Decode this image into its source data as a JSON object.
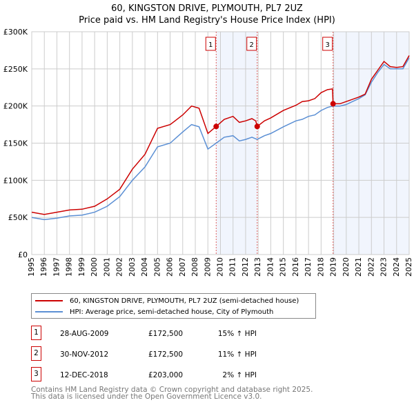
{
  "chart_data": {
    "type": "line",
    "title": "60, KINGSTON DRIVE, PLYMOUTH, PL7 2UZ",
    "subtitle": "Price paid vs. HM Land Registry's House Price Index (HPI)",
    "xlim": [
      1995,
      2025
    ],
    "ylim": [
      0,
      300000
    ],
    "x_ticks": [
      "1995",
      "1996",
      "1997",
      "1998",
      "1999",
      "2000",
      "2001",
      "2002",
      "2003",
      "2004",
      "2005",
      "2006",
      "2007",
      "2008",
      "2009",
      "2010",
      "2011",
      "2012",
      "2013",
      "2014",
      "2015",
      "2016",
      "2017",
      "2018",
      "2019",
      "2020",
      "2021",
      "2022",
      "2023",
      "2024",
      "2025"
    ],
    "y_ticks": [
      {
        "v": 0,
        "label": "£0"
      },
      {
        "v": 50000,
        "label": "£50K"
      },
      {
        "v": 100000,
        "label": "£100K"
      },
      {
        "v": 150000,
        "label": "£150K"
      },
      {
        "v": 200000,
        "label": "£200K"
      },
      {
        "v": 250000,
        "label": "£250K"
      },
      {
        "v": 300000,
        "label": "£300K"
      }
    ],
    "grid": true,
    "series": [
      {
        "name": "60, KINGSTON DRIVE, PLYMOUTH, PL7 2UZ (semi-detached house)",
        "color": "#cc0000",
        "x": [
          1995,
          1996,
          1997,
          1998,
          1999,
          2000,
          2001,
          2002,
          2003,
          2004,
          2005,
          2006,
          2007,
          2007.7,
          2008.3,
          2009,
          2009.66,
          2010.3,
          2011,
          2011.5,
          2012,
          2012.5,
          2012.8,
          2012.92,
          2013.5,
          2014,
          2015,
          2016,
          2016.5,
          2017,
          2017.5,
          2018,
          2018.5,
          2018.9,
          2018.95,
          2019.5,
          2020,
          2021,
          2021.5,
          2022,
          2022.5,
          2023,
          2023.5,
          2024,
          2024.5,
          2025
        ],
        "y": [
          57000,
          54000,
          57000,
          60000,
          61000,
          65000,
          75000,
          88000,
          115000,
          135000,
          170000,
          175000,
          188000,
          200000,
          197000,
          163000,
          172500,
          182000,
          186000,
          178000,
          180000,
          183000,
          180000,
          172500,
          180000,
          184000,
          194000,
          201000,
          206000,
          207000,
          210000,
          218000,
          222000,
          223000,
          203000,
          203000,
          206000,
          212000,
          216000,
          236000,
          248000,
          260000,
          253000,
          252000,
          253000,
          268000
        ]
      },
      {
        "name": "HPI: Average price, semi-detached house, City of Plymouth",
        "color": "#5b8fd4",
        "x": [
          1995,
          1996,
          1997,
          1998,
          1999,
          2000,
          2001,
          2002,
          2003,
          2004,
          2005,
          2006,
          2007,
          2007.7,
          2008.3,
          2009,
          2009.66,
          2010.3,
          2011,
          2011.5,
          2012,
          2012.5,
          2012.92,
          2013.5,
          2014,
          2015,
          2016,
          2016.5,
          2017,
          2017.5,
          2018,
          2018.5,
          2018.95,
          2019.5,
          2020,
          2021,
          2021.5,
          2022,
          2022.5,
          2023,
          2023.5,
          2024,
          2024.5,
          2025
        ],
        "y": [
          50000,
          47000,
          49000,
          52000,
          53000,
          57000,
          65000,
          78000,
          100000,
          118000,
          145000,
          150000,
          165000,
          175000,
          172000,
          142000,
          150000,
          158000,
          160000,
          153000,
          155000,
          158000,
          155000,
          160000,
          163000,
          172000,
          180000,
          182000,
          186000,
          188000,
          194000,
          198000,
          200000,
          200000,
          202000,
          210000,
          215000,
          232000,
          245000,
          256000,
          250000,
          250000,
          250000,
          265000
        ]
      }
    ],
    "sales": [
      {
        "id": "1",
        "x": 2009.66,
        "y": 172500,
        "date": "28-AUG-2009",
        "price": "£172,500",
        "hpi": "15% ↑ HPI"
      },
      {
        "id": "2",
        "x": 2012.92,
        "y": 172500,
        "date": "30-NOV-2012",
        "price": "£172,500",
        "hpi": "11% ↑ HPI"
      },
      {
        "id": "3",
        "x": 2018.95,
        "y": 203000,
        "date": "12-DEC-2018",
        "price": "£203,000",
        "hpi": "2% ↑ HPI"
      }
    ],
    "legend_position": "below"
  },
  "footer": {
    "line1": "Contains HM Land Registry data © Crown copyright and database right 2025.",
    "line2": "This data is licensed under the Open Government Licence v3.0."
  }
}
